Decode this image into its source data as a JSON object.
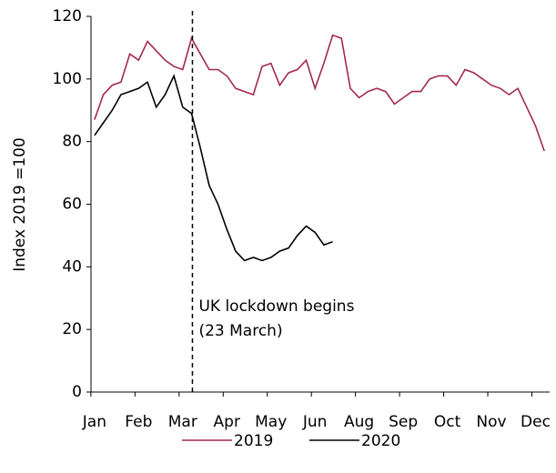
{
  "chart_data": {
    "type": "line",
    "y_label": "Index 2019 =100",
    "x": [
      1,
      2,
      3,
      4,
      5,
      6,
      7,
      8,
      9,
      10,
      11,
      12,
      13,
      14,
      15,
      16,
      17,
      18,
      19,
      20,
      21,
      22,
      23,
      24,
      25,
      26,
      27,
      28,
      29,
      30,
      31,
      32,
      33,
      34,
      35,
      36,
      37,
      38,
      39,
      40,
      41,
      42,
      43,
      44,
      45,
      46,
      47,
      48,
      49,
      50,
      51,
      52
    ],
    "xlim": [
      0.6,
      52.6
    ],
    "xticks": [
      {
        "value": 1,
        "label": "Jan"
      },
      {
        "value": 6,
        "label": "Feb"
      },
      {
        "value": 11,
        "label": "Mar"
      },
      {
        "value": 16,
        "label": "Apr"
      },
      {
        "value": 21,
        "label": "May"
      },
      {
        "value": 26,
        "label": "Jun"
      },
      {
        "value": 31,
        "label": "Aug"
      },
      {
        "value": 36,
        "label": "Sep"
      },
      {
        "value": 41,
        "label": "Oct"
      },
      {
        "value": 46,
        "label": "Nov"
      },
      {
        "value": 51,
        "label": "Dec"
      }
    ],
    "ylim": [
      0,
      120
    ],
    "yticks": [
      0,
      20,
      40,
      60,
      80,
      100,
      120
    ],
    "grid": false,
    "legend": "bottom",
    "series": [
      {
        "name": "2019",
        "color": "#a3294f",
        "values": [
          87,
          95,
          98,
          99,
          108,
          106,
          112,
          109,
          106,
          104,
          103,
          113,
          108,
          103,
          103,
          101,
          97,
          96,
          95,
          104,
          105,
          98,
          102,
          103,
          106,
          97,
          105,
          114,
          113,
          97,
          94,
          96,
          97,
          96,
          92,
          94,
          96,
          96,
          100,
          101,
          101,
          98,
          103,
          102,
          100,
          98,
          97,
          95,
          97,
          91,
          85,
          77
        ]
      },
      {
        "name": "2020",
        "color": "#000000",
        "values": [
          82,
          86,
          90,
          95,
          96,
          97,
          99,
          91,
          95,
          101,
          91,
          89,
          78,
          66,
          60,
          52,
          45,
          42,
          43,
          42,
          43,
          45,
          46,
          50,
          53,
          51,
          47,
          48,
          null,
          null,
          null,
          null,
          null,
          null,
          null,
          null,
          null,
          null,
          null,
          null,
          null,
          null,
          null,
          null,
          null,
          null,
          null,
          null,
          null,
          null,
          null,
          null
        ]
      }
    ],
    "annotation": {
      "x": 12.1,
      "lines": [
        "UK lockdown begins",
        "(23 March)"
      ]
    }
  }
}
